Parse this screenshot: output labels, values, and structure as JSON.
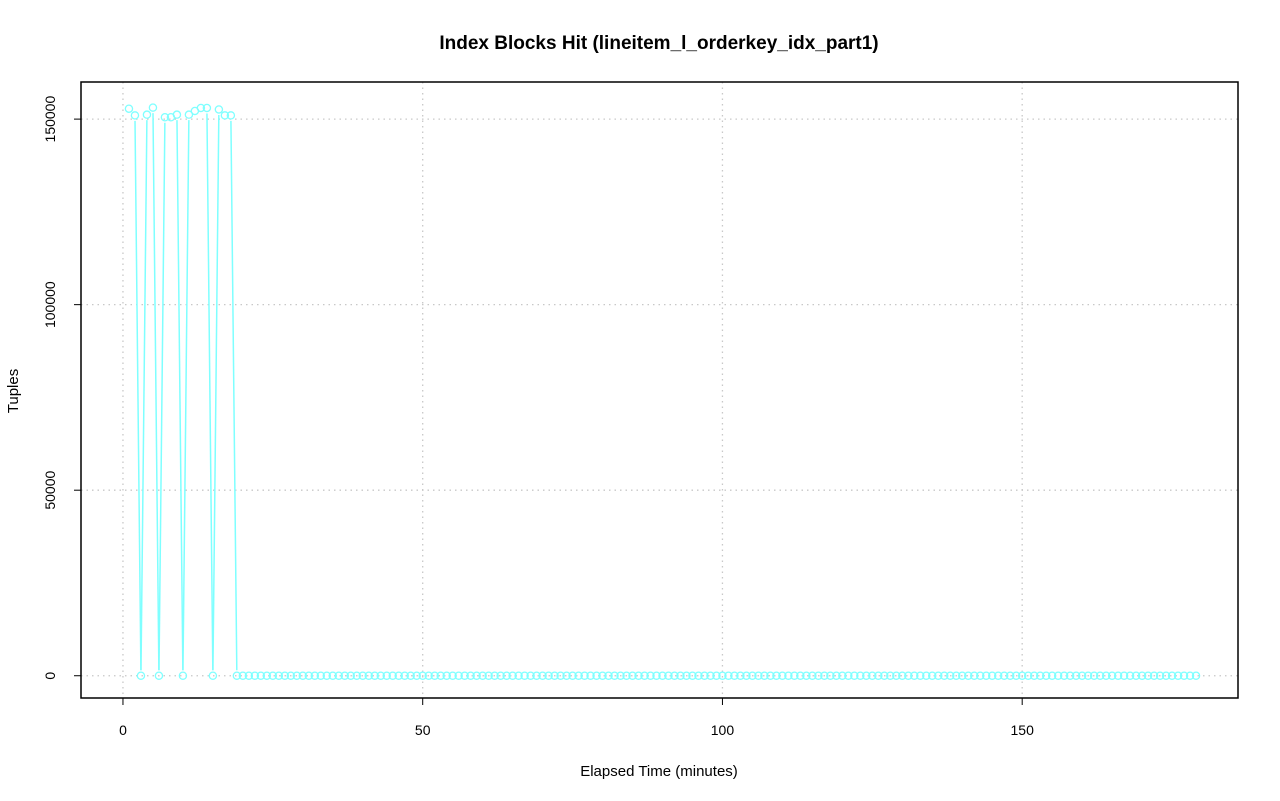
{
  "chart_data": {
    "type": "line",
    "title": "Index Blocks Hit (lineitem_l_orderkey_idx_part1)",
    "xlabel": "Elapsed Time (minutes)",
    "ylabel": "Tuples",
    "xlim": [
      -7,
      186
    ],
    "ylim": [
      -6000,
      160000
    ],
    "x_ticks": [
      0,
      50,
      100,
      150
    ],
    "x_tick_labels": [
      "0",
      "50",
      "100",
      "150"
    ],
    "y_ticks": [
      0,
      50000,
      100000,
      150000
    ],
    "y_tick_labels": [
      "0",
      "50000",
      "100000",
      "150000"
    ],
    "grid": true,
    "legend": "none",
    "series_color": "#7fffff",
    "series": [
      {
        "marker": "open-circle",
        "x_start": 1,
        "x_step": 1,
        "values": [
          152800,
          151000,
          0,
          151200,
          153100,
          0,
          150500,
          150500,
          151200,
          0,
          151200,
          152200,
          153000,
          153000,
          0,
          152600,
          151000,
          151000,
          0,
          0,
          0,
          0,
          0,
          0,
          0,
          0,
          0,
          0,
          0,
          0,
          0,
          0,
          0,
          0,
          0,
          0,
          0,
          0,
          0,
          0,
          0,
          0,
          0,
          0,
          0,
          0,
          0,
          0,
          0,
          0,
          0,
          0,
          0,
          0,
          0,
          0,
          0,
          0,
          0,
          0,
          0,
          0,
          0,
          0,
          0,
          0,
          0,
          0,
          0,
          0,
          0,
          0,
          0,
          0,
          0,
          0,
          0,
          0,
          0,
          0,
          0,
          0,
          0,
          0,
          0,
          0,
          0,
          0,
          0,
          0,
          0,
          0,
          0,
          0,
          0,
          0,
          0,
          0,
          0,
          0,
          0,
          0,
          0,
          0,
          0,
          0,
          0,
          0,
          0,
          0,
          0,
          0,
          0,
          0,
          0,
          0,
          0,
          0,
          0,
          0,
          0,
          0,
          0,
          0,
          0,
          0,
          0,
          0,
          0,
          0,
          0,
          0,
          0,
          0,
          0,
          0,
          0,
          0,
          0,
          0,
          0,
          0,
          0,
          0,
          0,
          0,
          0,
          0,
          0,
          0,
          0,
          0,
          0,
          0,
          0,
          0,
          0,
          0,
          0,
          0,
          0,
          0,
          0,
          0,
          0,
          0,
          0,
          0,
          0,
          0,
          0,
          0,
          0,
          0,
          0,
          0,
          0,
          0,
          0
        ]
      }
    ]
  }
}
